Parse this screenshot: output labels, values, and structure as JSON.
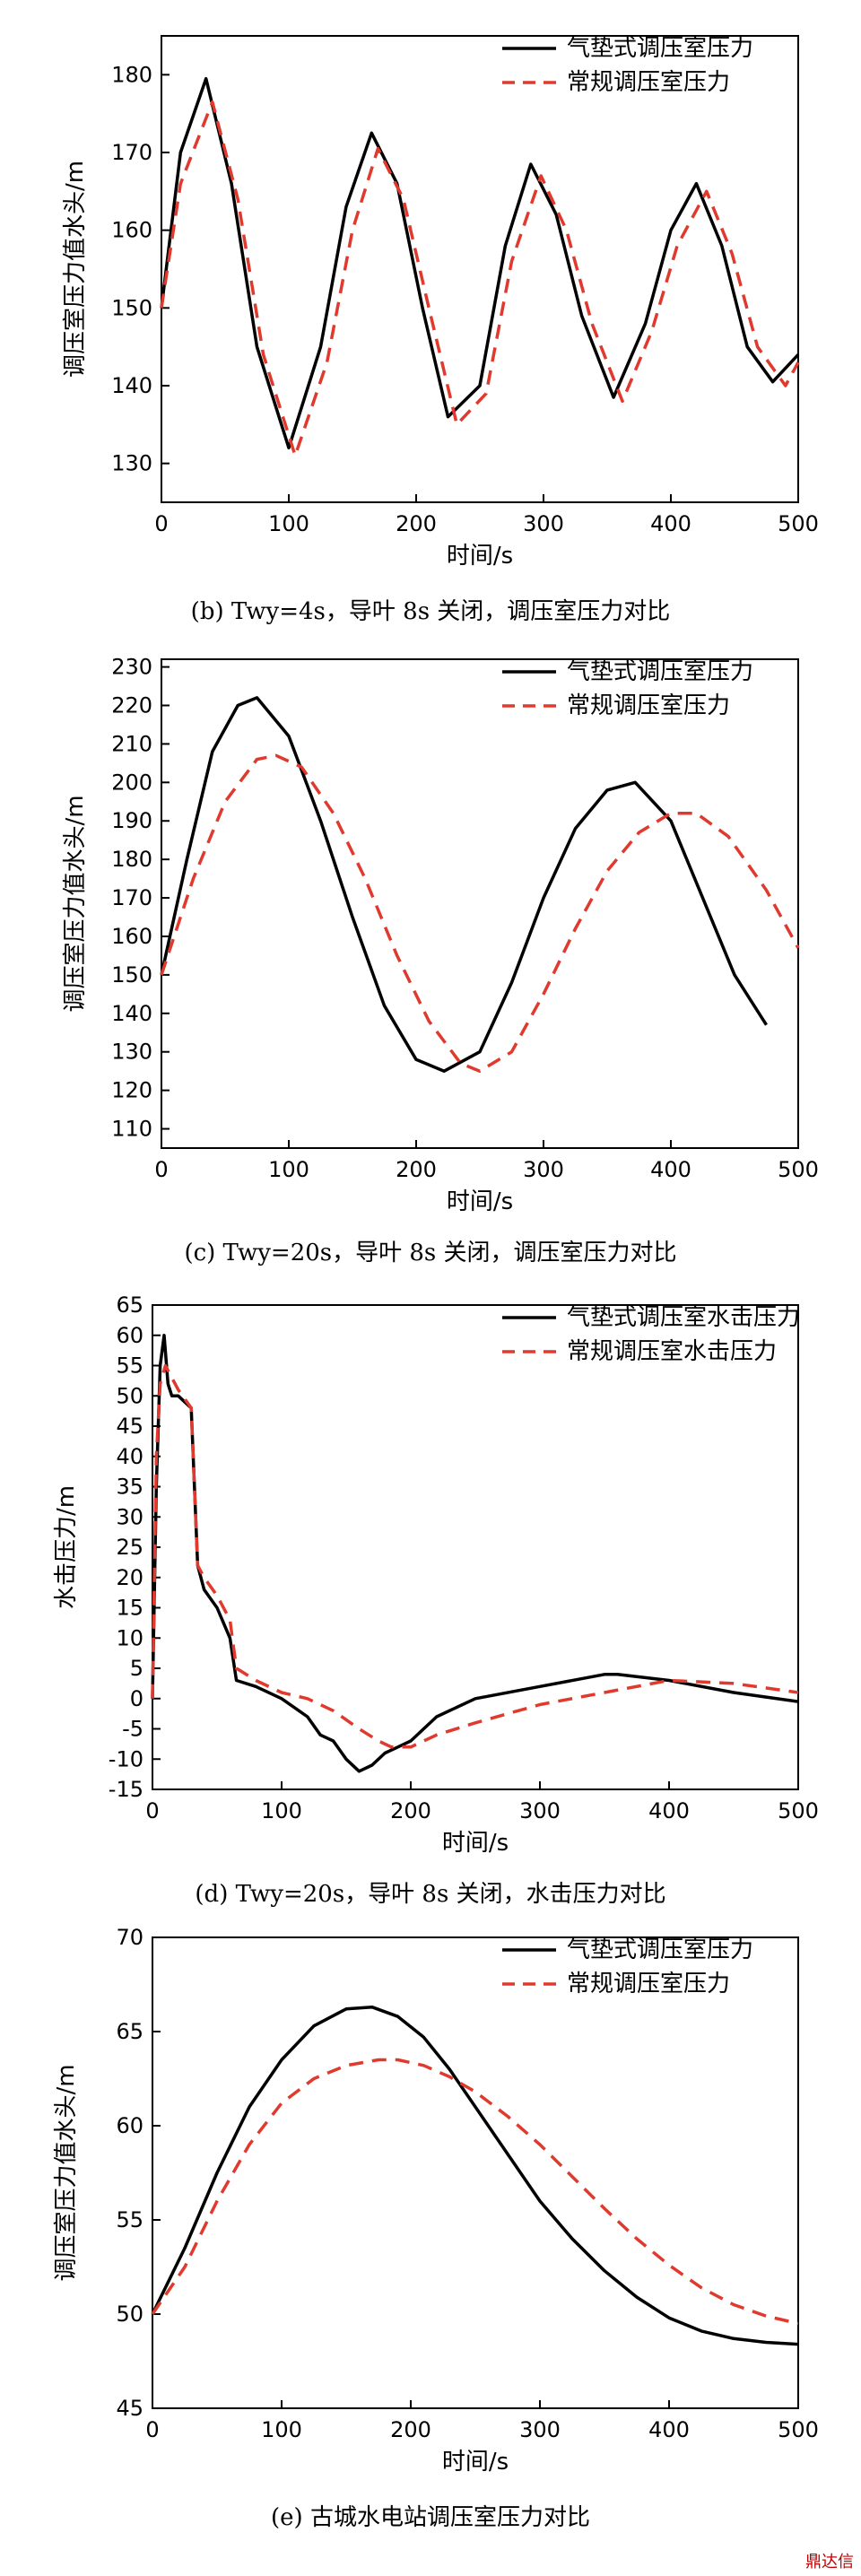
{
  "colors": {
    "series_solid": "#000000",
    "series_dashed": "#e03a2e",
    "watermark": "#c00000"
  },
  "watermark": "鼎达信",
  "chart_data": [
    {
      "id": "b",
      "type": "line",
      "caption": "(b)    Twy=4s，导叶 8s 关闭，调压室压力对比",
      "xlabel": "时间/s",
      "ylabel": "调压室压力值水头/m",
      "xlim": [
        0,
        500
      ],
      "ylim": [
        125,
        185
      ],
      "xticks": [
        0,
        100,
        200,
        300,
        400,
        500
      ],
      "yticks": [
        130,
        140,
        150,
        160,
        170,
        180
      ],
      "legend_position": "top-right",
      "grid": false,
      "series": [
        {
          "name": "气垫式调压室压力",
          "style": "solid",
          "x": [
            0,
            15,
            35,
            55,
            75,
            100,
            125,
            145,
            165,
            185,
            205,
            225,
            250,
            270,
            290,
            310,
            330,
            355,
            380,
            400,
            420,
            440,
            460,
            480,
            500
          ],
          "y": [
            150,
            170,
            179.5,
            166,
            145,
            132,
            145,
            163,
            172.5,
            166,
            150,
            136,
            140,
            158,
            168.5,
            162,
            149,
            138.5,
            148,
            160,
            166,
            158,
            145,
            140.5,
            144
          ]
        },
        {
          "name": "常规调压室压力",
          "style": "dashed",
          "x": [
            0,
            15,
            40,
            60,
            80,
            105,
            130,
            150,
            170,
            190,
            210,
            232,
            255,
            275,
            298,
            318,
            338,
            362,
            385,
            405,
            428,
            448,
            468,
            490,
            500
          ],
          "y": [
            150,
            166,
            176.5,
            164,
            144,
            131,
            143,
            160,
            170.5,
            164,
            150,
            135,
            139,
            156,
            167,
            160,
            148,
            138,
            147,
            158,
            165,
            157,
            145,
            140,
            143
          ]
        }
      ]
    },
    {
      "id": "c",
      "type": "line",
      "caption": "(c)    Twy=20s，导叶 8s 关闭，调压室压力对比",
      "xlabel": "时间/s",
      "ylabel": "调压室压力值水头/m",
      "xlim": [
        0,
        500
      ],
      "ylim": [
        105,
        232
      ],
      "xticks": [
        0,
        100,
        200,
        300,
        400,
        500
      ],
      "yticks": [
        110,
        120,
        130,
        140,
        150,
        160,
        170,
        180,
        190,
        200,
        210,
        220,
        230
      ],
      "legend_position": "top-right",
      "grid": false,
      "series": [
        {
          "name": "气垫式调压室压力",
          "style": "solid",
          "x": [
            0,
            20,
            40,
            60,
            75,
            100,
            125,
            150,
            175,
            200,
            222,
            250,
            275,
            300,
            325,
            350,
            372,
            400,
            425,
            450,
            475
          ],
          "y": [
            150,
            180,
            208,
            220,
            222,
            212,
            190,
            165,
            142,
            128,
            125,
            130,
            148,
            170,
            188,
            198,
            200,
            190,
            170,
            150,
            137
          ]
        },
        {
          "name": "常规调压室压力",
          "style": "dashed",
          "x": [
            0,
            25,
            50,
            75,
            90,
            110,
            135,
            160,
            185,
            210,
            235,
            250,
            275,
            300,
            325,
            350,
            375,
            400,
            420,
            445,
            475,
            500
          ],
          "y": [
            150,
            175,
            195,
            206,
            207,
            204,
            192,
            175,
            155,
            138,
            127,
            125,
            130,
            145,
            162,
            177,
            187,
            192,
            192,
            186,
            172,
            157
          ]
        }
      ]
    },
    {
      "id": "d",
      "type": "line",
      "caption": "(d)    Twy=20s，导叶 8s 关闭，水击压力对比",
      "xlabel": "时间/s",
      "ylabel": "水击压力/m",
      "xlim": [
        0,
        500
      ],
      "ylim": [
        -15,
        65
      ],
      "xticks": [
        0,
        100,
        200,
        300,
        400,
        500
      ],
      "yticks": [
        -15,
        -10,
        -5,
        0,
        5,
        10,
        15,
        20,
        25,
        30,
        35,
        40,
        45,
        50,
        55,
        60,
        65
      ],
      "legend_position": "top-right",
      "grid": false,
      "series": [
        {
          "name": "气垫式调压室水击压力",
          "style": "solid",
          "x": [
            0,
            3,
            6,
            9,
            12,
            15,
            20,
            30,
            35,
            40,
            50,
            60,
            65,
            80,
            100,
            120,
            130,
            140,
            150,
            160,
            170,
            180,
            190,
            200,
            220,
            250,
            300,
            350,
            360,
            400,
            450,
            500
          ],
          "y": [
            0,
            35,
            55,
            60,
            52,
            50,
            50,
            48,
            22,
            18,
            15,
            10,
            3,
            2,
            0,
            -3,
            -6,
            -7,
            -10,
            -12,
            -11,
            -9,
            -8,
            -7,
            -3,
            0,
            2,
            4,
            4,
            3,
            1,
            -0.5
          ]
        },
        {
          "name": "常规调压室水击压力",
          "style": "dashed",
          "x": [
            0,
            3,
            6,
            10,
            15,
            20,
            30,
            35,
            40,
            50,
            60,
            65,
            80,
            100,
            120,
            140,
            160,
            175,
            185,
            200,
            220,
            250,
            300,
            350,
            400,
            450,
            500
          ],
          "y": [
            0,
            40,
            52,
            55,
            53,
            51,
            48,
            22,
            20,
            17,
            13,
            5,
            3,
            1,
            0,
            -2,
            -5,
            -7,
            -8,
            -8,
            -6,
            -4,
            -1,
            1,
            3,
            2.5,
            1
          ]
        }
      ]
    },
    {
      "id": "e",
      "type": "line",
      "caption": "(e)    古城水电站调压室压力对比",
      "xlabel": "时间/s",
      "ylabel": "调压室压力值水头/m",
      "xlim": [
        0,
        500
      ],
      "ylim": [
        45,
        70
      ],
      "xticks": [
        0,
        100,
        200,
        300,
        400,
        500
      ],
      "yticks": [
        45,
        50,
        55,
        60,
        65,
        70
      ],
      "legend_position": "top-right",
      "grid": false,
      "series": [
        {
          "name": "气垫式调压室压力",
          "style": "solid",
          "x": [
            0,
            25,
            50,
            75,
            100,
            125,
            150,
            170,
            190,
            210,
            230,
            250,
            275,
            300,
            325,
            350,
            375,
            400,
            425,
            450,
            475,
            500
          ],
          "y": [
            50,
            53.5,
            57.5,
            61,
            63.5,
            65.3,
            66.2,
            66.3,
            65.8,
            64.7,
            63,
            61,
            58.5,
            56,
            54,
            52.3,
            50.9,
            49.8,
            49.1,
            48.7,
            48.5,
            48.4
          ]
        },
        {
          "name": "常规调压室压力",
          "style": "dashed",
          "x": [
            0,
            25,
            50,
            75,
            100,
            125,
            150,
            175,
            190,
            210,
            230,
            250,
            275,
            300,
            325,
            350,
            375,
            400,
            425,
            450,
            475,
            500
          ],
          "y": [
            50,
            52.5,
            56,
            59,
            61.2,
            62.5,
            63.2,
            63.5,
            63.5,
            63.2,
            62.6,
            61.8,
            60.5,
            59,
            57.3,
            55.6,
            54,
            52.6,
            51.4,
            50.5,
            49.9,
            49.5
          ]
        }
      ]
    }
  ]
}
